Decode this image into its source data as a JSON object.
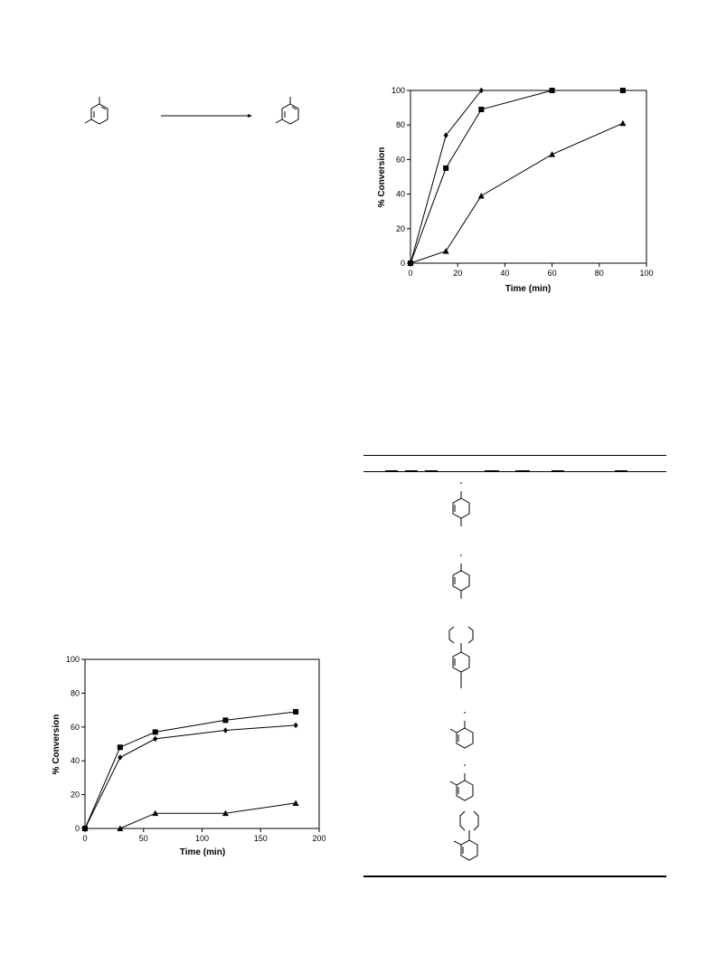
{
  "charts": {
    "top_right": {
      "xlabel": "Time (min)",
      "ylabel": "% Conversion"
    },
    "bottom_left": {
      "xlabel": "Time (min)",
      "ylabel": "% Conversion"
    }
  },
  "chart_data": [
    {
      "type": "line",
      "xlabel": "Time (min)",
      "ylabel": "% Conversion",
      "xlim": [
        0,
        100
      ],
      "ylim": [
        0,
        100
      ],
      "xticks": [
        0,
        20,
        40,
        60,
        80,
        100
      ],
      "yticks": [
        0,
        20,
        40,
        60,
        80,
        100
      ],
      "grid": false,
      "series": [
        {
          "marker": "diamond",
          "x": [
            0,
            15,
            30,
            60,
            90
          ],
          "y": [
            0,
            74,
            100,
            100,
            100
          ]
        },
        {
          "marker": "square",
          "x": [
            0,
            15,
            30,
            60,
            90
          ],
          "y": [
            0,
            55,
            89,
            100,
            100
          ]
        },
        {
          "marker": "triangle",
          "x": [
            0,
            15,
            30,
            60,
            90
          ],
          "y": [
            0,
            7,
            39,
            63,
            81
          ]
        }
      ]
    },
    {
      "type": "line",
      "xlabel": "Time (min)",
      "ylabel": "% Conversion",
      "xlim": [
        0,
        200
      ],
      "ylim": [
        0,
        100
      ],
      "xticks": [
        0,
        50,
        100,
        150,
        200
      ],
      "yticks": [
        0,
        20,
        40,
        60,
        80,
        100
      ],
      "grid": false,
      "series": [
        {
          "marker": "square",
          "x": [
            0,
            30,
            60,
            120,
            180
          ],
          "y": [
            0,
            48,
            57,
            64,
            69
          ]
        },
        {
          "marker": "diamond",
          "x": [
            0,
            30,
            60,
            120,
            180
          ],
          "y": [
            0,
            42,
            53,
            58,
            61
          ]
        },
        {
          "marker": "triangle",
          "x": [
            0,
            30,
            60,
            120,
            180
          ],
          "y": [
            0,
            0,
            9,
            9,
            15
          ]
        }
      ]
    }
  ],
  "structures": {
    "scheme_reactant": "benzene-ring-with-methyl-substituents",
    "scheme_product": "benzene-ring-with-methyl-substituents",
    "table_rows": [
      "para-substituted-ring",
      "para-substituted-ring",
      "cyclic-amine-on-para-ring",
      "ortho-substituted-ring",
      "ortho-substituted-ring",
      "cyclic-amine-on-ortho-ring"
    ]
  },
  "colors": {
    "ink": "#000000",
    "background": "#ffffff"
  }
}
